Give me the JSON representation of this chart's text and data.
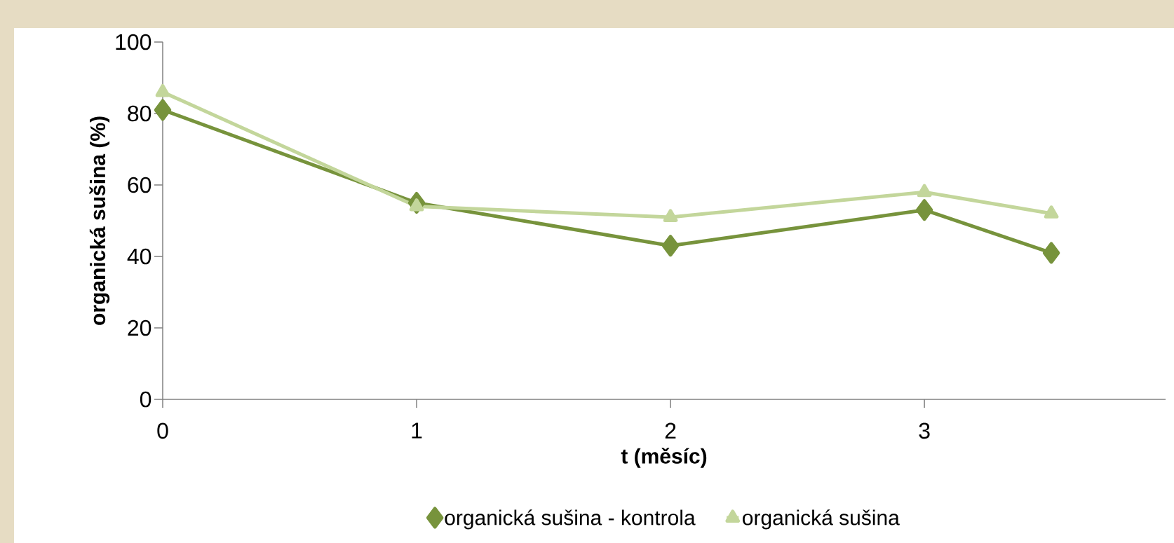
{
  "chart_data": {
    "type": "line",
    "xlabel": "t (měsíc)",
    "ylabel": "organická sušina (%)",
    "x": [
      0,
      1,
      2,
      3,
      3.5
    ],
    "series": [
      {
        "name": "organická sušina - kontrola",
        "color": "#77933c",
        "values": [
          81,
          55,
          43,
          53,
          41
        ],
        "marker": "diamond"
      },
      {
        "name": "organická sušina",
        "color": "#c3d69b",
        "values": [
          86,
          54,
          51,
          58,
          52
        ],
        "marker": "triangle"
      }
    ],
    "xlim": [
      0,
      3.95
    ],
    "xticks": [
      0,
      1,
      2,
      3
    ],
    "ylim": [
      0,
      100
    ],
    "yticks": [
      0,
      20,
      40,
      60,
      80,
      100
    ],
    "grid": false,
    "legend": "bottom"
  }
}
